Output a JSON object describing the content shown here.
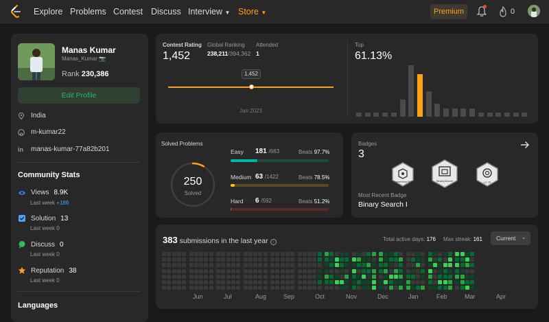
{
  "nav": {
    "items": [
      "Explore",
      "Problems",
      "Contest",
      "Discuss",
      "Interview",
      "Store"
    ],
    "premium": "Premium",
    "streak": "0"
  },
  "profile": {
    "name": "Manas Kumar",
    "handle": "Manas_Kumar",
    "rank_label": "Rank",
    "rank": "230,386",
    "edit": "Edit Profile",
    "location": "India",
    "github": "m-kumar22",
    "linkedin": "manas-kumar-77a82b201"
  },
  "community": {
    "title": "Community Stats",
    "last_week": "Last week",
    "views": {
      "label": "Views",
      "value": "8.9K",
      "week": "+186"
    },
    "solution": {
      "label": "Solution",
      "value": "13",
      "week": "0"
    },
    "discuss": {
      "label": "Discuss",
      "value": "0",
      "week": "0"
    },
    "reputation": {
      "label": "Reputation",
      "value": "38",
      "week": "0"
    },
    "languages": "Languages"
  },
  "contest": {
    "rating_label": "Contest Rating",
    "rating": "1,452",
    "global_label": "Global Ranking",
    "global": "238,211",
    "global_total": "/394,362",
    "attended_label": "Attended",
    "attended": "1",
    "tooltip": "1,452",
    "date": "Jan 2023",
    "top_label": "Top",
    "top": "61.13%",
    "histogram": [
      1,
      1,
      1,
      1,
      1,
      4,
      12,
      10,
      6,
      3,
      2,
      2,
      2,
      2,
      1,
      1,
      1,
      1,
      1,
      1
    ],
    "highlight_index": 7
  },
  "solved": {
    "title": "Solved Problems",
    "count": "250",
    "sub": "Solved",
    "beats": "Beats",
    "fraction": 0.085,
    "easy": {
      "label": "Easy",
      "value": "181",
      "total": "/663",
      "pct": "97.7%",
      "fill": 0.273,
      "color": "#00b8a3"
    },
    "medium": {
      "label": "Medium",
      "value": "63",
      "total": "/1422",
      "pct": "78.5%",
      "fill": 0.044,
      "color": "#ffc01e"
    },
    "hard": {
      "label": "Hard",
      "value": "6",
      "total": "/592",
      "pct": "51.2%",
      "fill": 0.01,
      "color": "#ef4743"
    }
  },
  "badges": {
    "title": "Badges",
    "count": "3",
    "items": [
      "Programming Skills",
      "BinarySearch",
      "LC 75"
    ],
    "recent_label": "Most Recent Badge",
    "recent": "Binary Search I"
  },
  "submissions": {
    "count": "383",
    "label": "submissions in the last year",
    "active_label": "Total active days:",
    "active": "176",
    "streak_label": "Max streak:",
    "streak": "161",
    "current": "Current",
    "months": [
      "Jun",
      "Jul",
      "Aug",
      "Sep",
      "Oct",
      "Nov",
      "Dec",
      "Jan",
      "Feb",
      "Mar",
      "Apr"
    ]
  }
}
